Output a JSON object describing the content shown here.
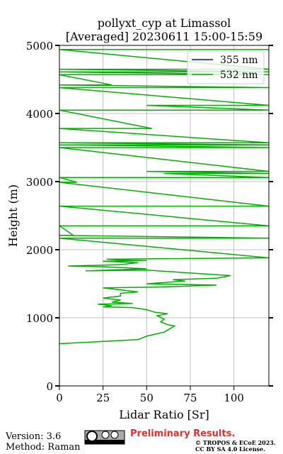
{
  "chart_data": {
    "type": "line",
    "title": "pollyxt_cyp at Limassol",
    "subtitle": "[Averaged] 20230611 15:00-15:59",
    "x_label": "Lidar Ratio [Sr]",
    "y_label": "Height (m)",
    "xlim": [
      0,
      120
    ],
    "ylim": [
      0,
      5000
    ],
    "xticks": [
      0,
      25,
      50,
      75,
      100
    ],
    "yticks": [
      0,
      1000,
      2000,
      3000,
      4000,
      5000
    ],
    "grid": true,
    "legend": "upper right",
    "series": [
      {
        "name": "355 nm",
        "color": "#0000ff",
        "x": [],
        "y": []
      },
      {
        "name": "532 nm",
        "color": "#00b000",
        "x": [
          0,
          45,
          47,
          50,
          55,
          60,
          62,
          66,
          62,
          58,
          60,
          56,
          62,
          55,
          50,
          42,
          25,
          30,
          22,
          42,
          30,
          35,
          25,
          35,
          35,
          45,
          25,
          55,
          90,
          50,
          72,
          65,
          90,
          98,
          80,
          50,
          15,
          50,
          25,
          5,
          35,
          45,
          25,
          50,
          33,
          27,
          120,
          0,
          120,
          0,
          8,
          0,
          120,
          0,
          120,
          0,
          10,
          0,
          120,
          60,
          120,
          50,
          120,
          0,
          120,
          0,
          120,
          0,
          120,
          0,
          53,
          0,
          120,
          50,
          120,
          0,
          120,
          0,
          30,
          0,
          120,
          0,
          120,
          0,
          120,
          0,
          120
        ],
        "y": [
          620,
          680,
          700,
          730,
          760,
          790,
          820,
          880,
          900,
          940,
          980,
          1030,
          1060,
          1080,
          1120,
          1150,
          1160,
          1180,
          1200,
          1210,
          1230,
          1260,
          1290,
          1320,
          1360,
          1380,
          1440,
          1450,
          1480,
          1500,
          1540,
          1560,
          1580,
          1620,
          1650,
          1700,
          1690,
          1720,
          1750,
          1760,
          1780,
          1810,
          1830,
          1840,
          1850,
          1860,
          1880,
          2170,
          2170,
          2210,
          2210,
          2350,
          2350,
          2640,
          2640,
          2990,
          2990,
          3060,
          3060,
          3120,
          3120,
          3150,
          3150,
          3500,
          3500,
          3540,
          3540,
          3570,
          3570,
          3780,
          3780,
          4050,
          4050,
          4120,
          4120,
          4380,
          4380,
          4420,
          4420,
          4570,
          4570,
          4610,
          4610,
          4650,
          4650,
          4940,
          4940
        ]
      }
    ],
    "footer": {
      "version": "Version: 3.6",
      "method": "Method: Raman",
      "preliminary": "Preliminary Results.",
      "copyright": "© TROPOS & ECoE 2023.",
      "license": "CC BY SA 4.0 License."
    }
  }
}
